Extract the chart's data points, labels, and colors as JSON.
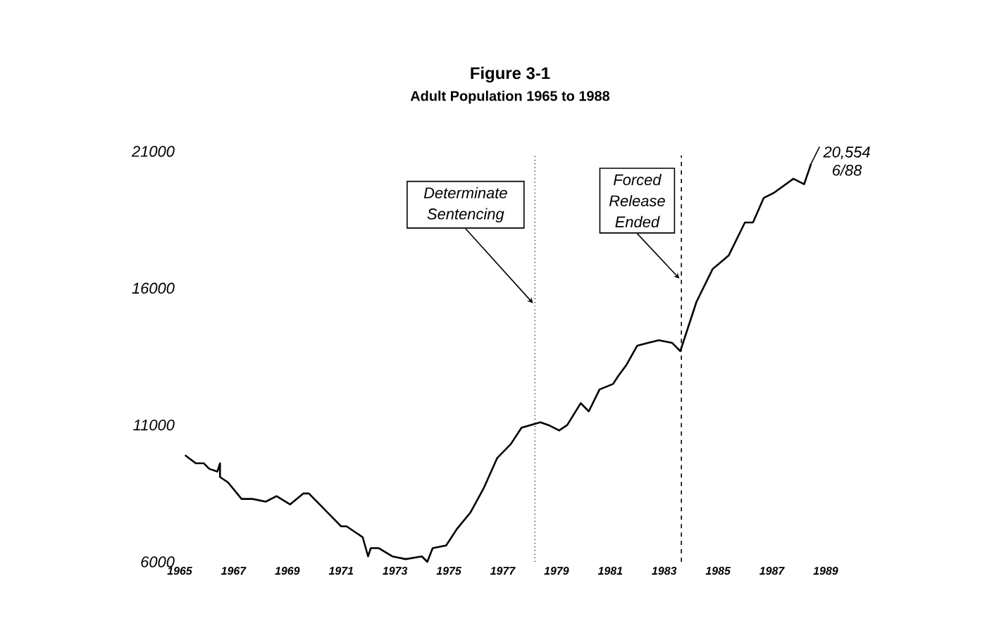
{
  "chart_data": {
    "type": "line",
    "title": "Figure 3-1",
    "subtitle": "Adult Population 1965 to 1988",
    "x": [
      1965.2,
      1965.6,
      1965.9,
      1966.1,
      1966.4,
      1966.5,
      1966.5,
      1966.8,
      1967.3,
      1967.7,
      1968.2,
      1968.6,
      1969.1,
      1969.6,
      1969.8,
      1970.2,
      1970.5,
      1971.0,
      1971.2,
      1971.8,
      1972.0,
      1972.1,
      1972.4,
      1972.9,
      1973.4,
      1974.0,
      1974.2,
      1974.4,
      1974.9,
      1975.3,
      1975.8,
      1976.3,
      1976.8,
      1977.3,
      1977.7,
      1978.4,
      1978.7,
      1979.1,
      1979.4,
      1979.9,
      1980.2,
      1980.6,
      1981.1,
      1981.3,
      1981.6,
      1982.0,
      1982.4,
      1982.8,
      1983.3,
      1983.6,
      1984.2,
      1984.8,
      1985.4,
      1985.7,
      1986.0,
      1986.3,
      1986.7,
      1987.1,
      1987.8,
      1988.2,
      1988.46
    ],
    "values": [
      9900,
      9600,
      9600,
      9400,
      9300,
      9600,
      9100,
      8900,
      8300,
      8300,
      8200,
      8400,
      8100,
      8500,
      8500,
      8100,
      7800,
      7300,
      7300,
      6900,
      6200,
      6500,
      6500,
      6200,
      6100,
      6200,
      6000,
      6500,
      6600,
      7200,
      7800,
      8700,
      9800,
      10300,
      10900,
      11100,
      11000,
      10800,
      11000,
      11800,
      11500,
      12300,
      12500,
      12800,
      13200,
      13900,
      14000,
      14100,
      14000,
      13700,
      15500,
      16700,
      17200,
      17800,
      18400,
      18400,
      19300,
      19500,
      20000,
      19800,
      20554
    ],
    "color": "#000000",
    "marker": "none",
    "line_style": "solid",
    "xlim": [
      1965,
      1989
    ],
    "ylim": [
      6000,
      21000
    ],
    "xticks": [
      1965,
      1967,
      1969,
      1971,
      1973,
      1975,
      1977,
      1979,
      1981,
      1983,
      1985,
      1987,
      1989
    ],
    "yticks": [
      6000,
      11000,
      16000,
      21000
    ],
    "ref_lines": [
      {
        "axis": "x",
        "value": 1978.2,
        "label": "Determinate Sentencing",
        "line_style": "dotted",
        "color": "#000000"
      },
      {
        "axis": "x",
        "value": 1983.64,
        "label": "Forced Release Ended",
        "line_style": "dashed",
        "color": "#000000"
      }
    ],
    "annotations": [
      {
        "text": "20,554 6/88",
        "x": 1988.46,
        "y": 20554
      }
    ]
  }
}
